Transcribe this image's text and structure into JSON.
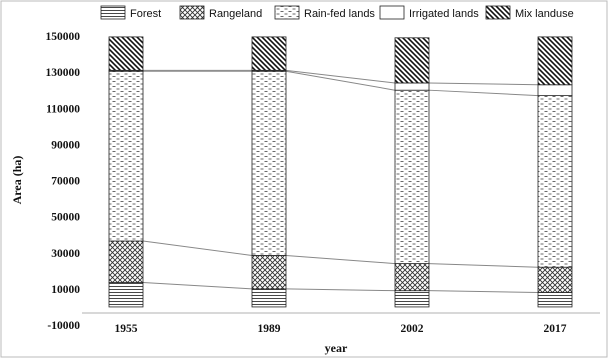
{
  "chart_data": {
    "type": "bar",
    "stacked": true,
    "title": "",
    "xlabel": "year",
    "ylabel": "Area (ha)",
    "ylim": [
      -10000,
      150000
    ],
    "yticks": [
      -10000,
      10000,
      30000,
      50000,
      70000,
      90000,
      110000,
      130000,
      150000
    ],
    "categories": [
      "1955",
      "1989",
      "2002",
      "2017"
    ],
    "series": [
      {
        "name": "Forest",
        "values": [
          13500,
          10000,
          9000,
          8000
        ],
        "pattern": "horizontal-lines"
      },
      {
        "name": "Rangeland",
        "values": [
          23000,
          18500,
          15000,
          14000
        ],
        "pattern": "crosshatch"
      },
      {
        "name": "Rain-fed lands",
        "values": [
          94000,
          102000,
          96000,
          95000
        ],
        "pattern": "dashes"
      },
      {
        "name": "Irrigated lands",
        "values": [
          500,
          500,
          4000,
          6000
        ],
        "pattern": "blank"
      },
      {
        "name": "Mix landuse",
        "values": [
          18500,
          18500,
          25000,
          26500
        ],
        "pattern": "diagonal-lines"
      }
    ],
    "grid": false,
    "legend_position": "top",
    "connector_lines": true,
    "colors": {
      "stroke": "#222222",
      "connector": "#888888",
      "frame": "#bbbbbb"
    }
  }
}
